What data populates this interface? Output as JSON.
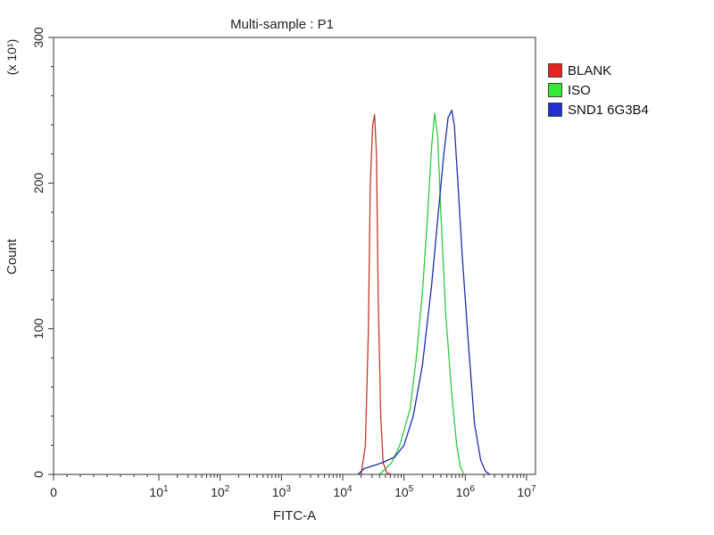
{
  "chart_data": {
    "type": "line",
    "title": "Multi-sample : P1",
    "xlabel": "FITC-A",
    "ylabel": "Count",
    "y_multiplier": "(x 10¹)",
    "x_scale": "log",
    "ylim": [
      0,
      300
    ],
    "yticks": [
      "0",
      "100",
      "200",
      "300"
    ],
    "xticks": [
      {
        "base": "0",
        "exp": ""
      },
      {
        "base": "10",
        "exp": "1"
      },
      {
        "base": "10",
        "exp": "2"
      },
      {
        "base": "10",
        "exp": "3"
      },
      {
        "base": "10",
        "exp": "4"
      },
      {
        "base": "10",
        "exp": "5"
      },
      {
        "base": "10",
        "exp": "6"
      },
      {
        "base": "10",
        "exp": "7"
      }
    ],
    "legend_placement": "right",
    "series": [
      {
        "name": "BLANK",
        "color": "#c0392b",
        "log10_x": [
          4.3,
          4.37,
          4.42,
          4.45,
          4.49,
          4.52,
          4.55,
          4.58,
          4.62,
          4.66,
          4.72,
          4.8
        ],
        "y": [
          0,
          20,
          100,
          200,
          240,
          247,
          220,
          120,
          40,
          8,
          1,
          0
        ]
      },
      {
        "name": "ISO",
        "color": "#2ecc40",
        "log10_x": [
          4.6,
          4.8,
          4.93,
          5.0,
          5.1,
          5.2,
          5.3,
          5.38,
          5.45,
          5.5,
          5.55,
          5.6,
          5.68,
          5.78,
          5.86,
          5.92,
          5.98
        ],
        "y": [
          0,
          8,
          20,
          30,
          45,
          80,
          125,
          175,
          225,
          248,
          232,
          180,
          110,
          55,
          20,
          5,
          0
        ]
      },
      {
        "name": "SND1 6G3B4",
        "color": "#1a2ea8",
        "log10_x": [
          4.25,
          4.35,
          4.5,
          4.65,
          4.85,
          5.0,
          5.15,
          5.3,
          5.45,
          5.55,
          5.65,
          5.72,
          5.78,
          5.82,
          5.88,
          5.95,
          6.05,
          6.15,
          6.25,
          6.33,
          6.4
        ],
        "y": [
          0,
          4,
          6,
          8,
          12,
          20,
          40,
          75,
          130,
          175,
          220,
          245,
          250,
          240,
          200,
          150,
          90,
          35,
          10,
          2,
          0
        ]
      }
    ]
  }
}
